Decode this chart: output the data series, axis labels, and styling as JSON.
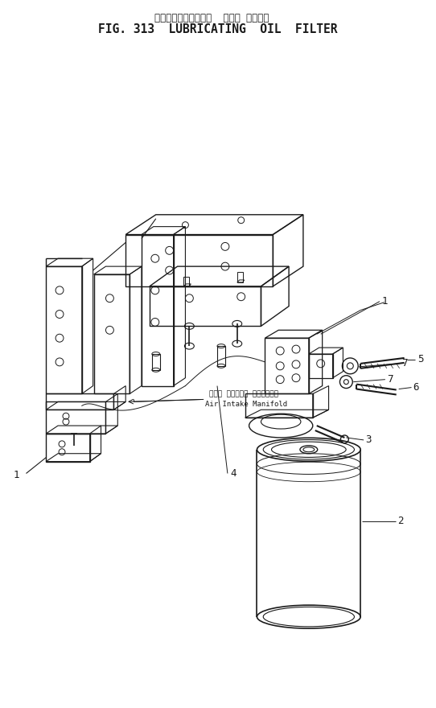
{
  "title_jp": "ルーブリケーティング  オイル フィルタ",
  "title_en": "FIG. 313  LUBRICATING  OIL  FILTER",
  "bg_color": "#ffffff",
  "lc": "#1a1a1a",
  "title_jp_fs": 8.5,
  "title_en_fs": 10.5,
  "label_fs": 9,
  "annot_fs": 6.5
}
